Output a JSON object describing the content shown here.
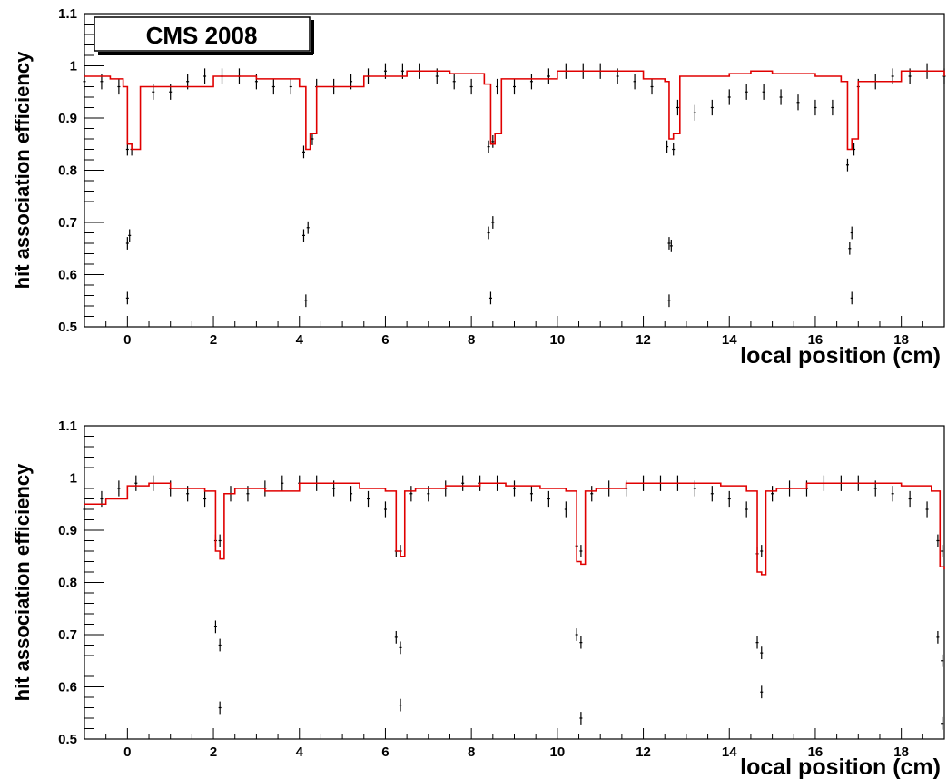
{
  "banner": {
    "label": "CMS 2008"
  },
  "chart_data": [
    {
      "type": "line",
      "title": "",
      "xlabel": "local position (cm)",
      "ylabel": "hit association efficiency",
      "xlim": [
        -1,
        19
      ],
      "ylim": [
        0.5,
        1.1
      ],
      "x_ticks": [
        0,
        2,
        4,
        6,
        8,
        10,
        12,
        14,
        16,
        18
      ],
      "y_ticks": [
        0.5,
        0.6,
        0.7,
        0.8,
        0.9,
        1,
        1.1
      ],
      "grid": false,
      "colors": {
        "data": "#000000",
        "simulation": "#e00000"
      },
      "series": [
        {
          "style": "markers-with-error-bars",
          "x": [
            -1,
            -0.6,
            -0.2,
            0.6,
            1.0,
            1.4,
            1.8,
            2.2,
            2.6,
            3.0,
            3.4,
            3.8,
            4.4,
            4.8,
            5.2,
            5.6,
            6.0,
            6.4,
            6.8,
            7.2,
            7.6,
            8.0,
            8.6,
            9.0,
            9.4,
            9.8,
            10.2,
            10.6,
            11.0,
            11.4,
            11.8,
            12.2,
            12.8,
            13.2,
            13.6,
            14.0,
            14.4,
            14.8,
            15.2,
            15.6,
            16.0,
            16.4,
            17.0,
            17.4,
            17.8,
            18.2,
            18.6,
            19.0
          ],
          "y": [
            0.97,
            0.97,
            0.96,
            0.95,
            0.95,
            0.97,
            0.98,
            0.98,
            0.98,
            0.97,
            0.96,
            0.96,
            0.96,
            0.96,
            0.97,
            0.98,
            0.99,
            0.99,
            0.99,
            0.98,
            0.97,
            0.96,
            0.96,
            0.96,
            0.97,
            0.98,
            0.99,
            0.99,
            0.99,
            0.98,
            0.97,
            0.96,
            0.92,
            0.91,
            0.92,
            0.94,
            0.95,
            0.95,
            0.94,
            0.93,
            0.92,
            0.92,
            0.96,
            0.97,
            0.98,
            0.98,
            0.99,
            0.98
          ],
          "yerr": 0.015
        },
        {
          "style": "dip-points",
          "x": [
            0.0,
            0.0,
            0.05,
            0.1,
            0.0,
            4.1,
            4.1,
            4.2,
            4.3,
            4.15,
            8.4,
            8.4,
            8.5,
            8.5,
            8.45,
            12.55,
            12.6,
            12.65,
            12.7,
            12.6,
            16.75,
            16.8,
            16.85,
            16.9,
            16.85
          ],
          "y": [
            0.84,
            0.66,
            0.675,
            0.84,
            0.555,
            0.835,
            0.675,
            0.69,
            0.86,
            0.55,
            0.845,
            0.68,
            0.7,
            0.855,
            0.555,
            0.845,
            0.66,
            0.655,
            0.84,
            0.55,
            0.81,
            0.65,
            0.68,
            0.84,
            0.555
          ],
          "yerr": 0.012
        },
        {
          "style": "histogram-step",
          "x": [
            -1,
            -0.4,
            -0.1,
            0.0,
            0.1,
            0.3,
            1.0,
            2.0,
            3.0,
            4.0,
            4.15,
            4.25,
            4.4,
            5.5,
            6.5,
            7.5,
            8.3,
            8.45,
            8.55,
            8.7,
            10.0,
            11.0,
            12.0,
            12.5,
            12.6,
            12.7,
            12.85,
            14.0,
            14.5,
            15.0,
            16.0,
            16.6,
            16.75,
            16.85,
            17.0,
            18.0,
            19.0
          ],
          "y": [
            0.98,
            0.975,
            0.96,
            0.85,
            0.84,
            0.96,
            0.96,
            0.98,
            0.975,
            0.96,
            0.84,
            0.87,
            0.96,
            0.98,
            0.99,
            0.985,
            0.965,
            0.85,
            0.87,
            0.975,
            0.99,
            0.99,
            0.975,
            0.97,
            0.86,
            0.87,
            0.98,
            0.985,
            0.99,
            0.985,
            0.98,
            0.97,
            0.84,
            0.86,
            0.97,
            0.99,
            0.98
          ]
        }
      ]
    },
    {
      "type": "line",
      "title": "",
      "xlabel": "local position (cm)",
      "ylabel": "hit association efficiency",
      "xlim": [
        -1,
        19
      ],
      "ylim": [
        0.5,
        1.1
      ],
      "x_ticks": [
        0,
        2,
        4,
        6,
        8,
        10,
        12,
        14,
        16,
        18
      ],
      "y_ticks": [
        0.5,
        0.6,
        0.7,
        0.8,
        0.9,
        1,
        1.1
      ],
      "grid": false,
      "colors": {
        "data": "#000000",
        "simulation": "#e00000"
      },
      "series": [
        {
          "style": "markers-with-error-bars",
          "x": [
            -1,
            -0.6,
            -0.2,
            0.2,
            0.6,
            1.0,
            1.4,
            1.8,
            2.4,
            2.8,
            3.2,
            3.6,
            4.0,
            4.4,
            4.8,
            5.2,
            5.6,
            6.0,
            6.6,
            7.0,
            7.4,
            7.8,
            8.2,
            8.6,
            9.0,
            9.4,
            9.8,
            10.2,
            10.8,
            11.2,
            11.6,
            12.0,
            12.4,
            12.8,
            13.2,
            13.6,
            14.0,
            14.4,
            15.0,
            15.4,
            15.8,
            16.2,
            16.6,
            17.0,
            17.4,
            17.8,
            18.2,
            18.6
          ],
          "y": [
            0.94,
            0.96,
            0.98,
            0.99,
            0.99,
            0.98,
            0.97,
            0.96,
            0.97,
            0.97,
            0.98,
            0.99,
            0.99,
            0.99,
            0.98,
            0.97,
            0.96,
            0.94,
            0.97,
            0.97,
            0.98,
            0.99,
            0.99,
            0.99,
            0.98,
            0.97,
            0.96,
            0.94,
            0.97,
            0.98,
            0.98,
            0.99,
            0.99,
            0.99,
            0.98,
            0.97,
            0.96,
            0.94,
            0.97,
            0.98,
            0.98,
            0.99,
            0.99,
            0.99,
            0.98,
            0.97,
            0.96,
            0.94
          ],
          "yerr": 0.015
        },
        {
          "style": "dip-points",
          "x": [
            2.05,
            2.05,
            2.15,
            2.15,
            2.15,
            6.25,
            6.25,
            6.35,
            6.35,
            6.35,
            10.45,
            10.45,
            10.55,
            10.55,
            10.55,
            14.65,
            14.65,
            14.75,
            14.75,
            14.75,
            18.85,
            18.85,
            18.95,
            18.95,
            18.95
          ],
          "y": [
            0.88,
            0.715,
            0.88,
            0.68,
            0.56,
            0.86,
            0.695,
            0.86,
            0.675,
            0.565,
            0.87,
            0.7,
            0.86,
            0.685,
            0.54,
            0.855,
            0.685,
            0.86,
            0.665,
            0.59,
            0.88,
            0.695,
            0.86,
            0.65,
            0.53
          ],
          "yerr": 0.012
        },
        {
          "style": "histogram-step",
          "x": [
            -1,
            -0.5,
            0.0,
            0.5,
            1.0,
            1.8,
            2.05,
            2.15,
            2.25,
            2.5,
            3.2,
            4.0,
            4.6,
            5.4,
            6.0,
            6.25,
            6.35,
            6.45,
            6.7,
            7.4,
            8.2,
            8.8,
            9.6,
            10.2,
            10.45,
            10.55,
            10.65,
            10.9,
            11.6,
            12.4,
            13.0,
            13.8,
            14.4,
            14.65,
            14.75,
            14.85,
            15.1,
            15.8,
            16.6,
            17.2,
            18.0,
            18.7,
            18.9,
            19.0
          ],
          "y": [
            0.95,
            0.96,
            0.985,
            0.99,
            0.98,
            0.975,
            0.86,
            0.845,
            0.97,
            0.98,
            0.975,
            0.99,
            0.99,
            0.98,
            0.975,
            0.86,
            0.85,
            0.975,
            0.98,
            0.985,
            0.99,
            0.985,
            0.98,
            0.975,
            0.84,
            0.835,
            0.975,
            0.98,
            0.99,
            0.99,
            0.99,
            0.985,
            0.975,
            0.82,
            0.815,
            0.975,
            0.98,
            0.99,
            0.99,
            0.99,
            0.985,
            0.975,
            0.83,
            0.825
          ]
        }
      ]
    }
  ]
}
